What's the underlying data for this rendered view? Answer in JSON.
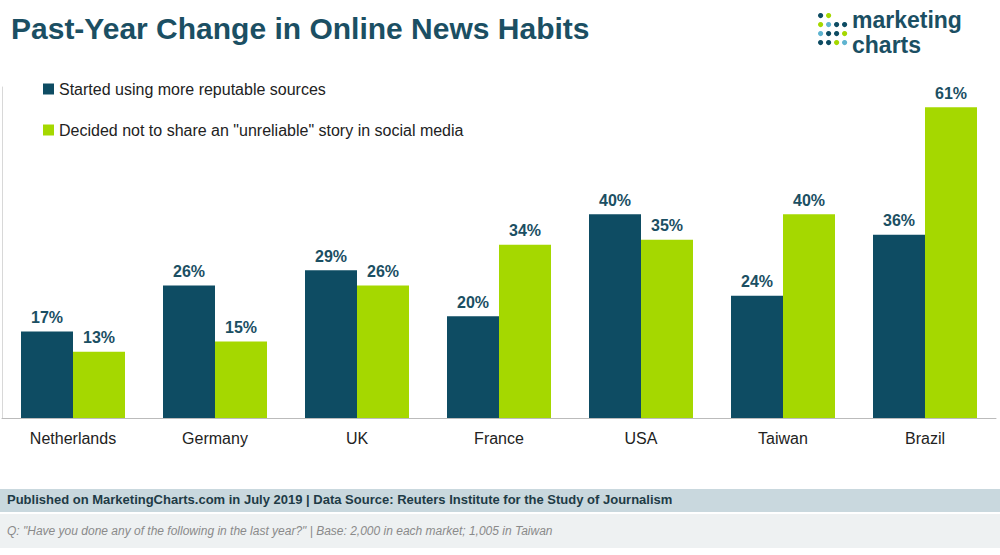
{
  "chart_data": {
    "type": "bar",
    "title": "Past-Year Change in Online News Habits",
    "brand": [
      "marketing",
      "charts"
    ],
    "categories": [
      "Netherlands",
      "Germany",
      "UK",
      "France",
      "USA",
      "Taiwan",
      "Brazil"
    ],
    "series": [
      {
        "name": "Started using more reputable sources",
        "color": "#0e4c63",
        "values": [
          17,
          26,
          29,
          20,
          40,
          24,
          36
        ],
        "value_labels": [
          "17%",
          "26%",
          "29%",
          "20%",
          "40%",
          "24%",
          "36%"
        ]
      },
      {
        "name": "Decided not to share an \"unreliable\" story in social media",
        "color": "#a5d800",
        "values": [
          13,
          15,
          26,
          34,
          35,
          40,
          61
        ],
        "value_labels": [
          "13%",
          "15%",
          "26%",
          "34%",
          "35%",
          "40%",
          "61%"
        ]
      }
    ],
    "ylim": [
      0,
      65
    ],
    "grid": false,
    "legend": "top-left",
    "data_labels": true,
    "tick_labels": "x",
    "source": "Published on MarketingCharts.com in July 2019 | Data Source: Reuters Institute for the Study of Journalism",
    "note": "Q: \"Have you done any of the following in the last year?\" | Base: 2,000 in each market; 1,005 in Taiwan"
  }
}
